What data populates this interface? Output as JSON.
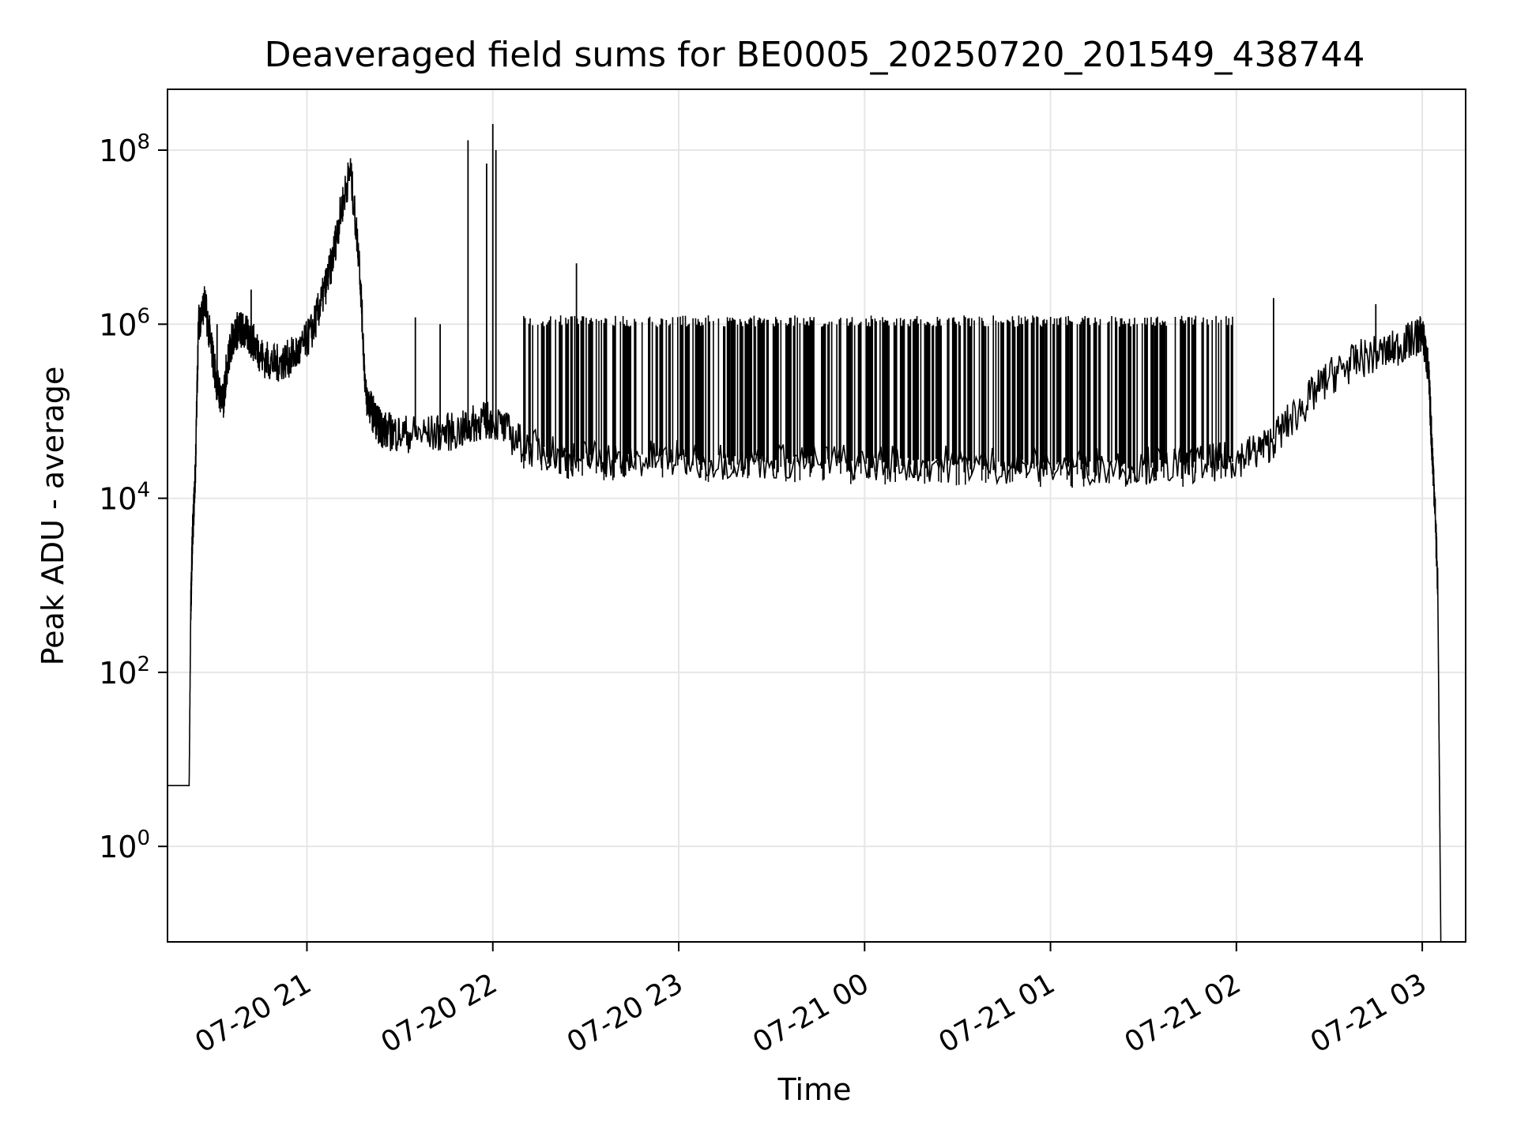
{
  "chart_data": {
    "type": "line",
    "title": "Deaveraged field sums for BE0005_20250720_201549_438744",
    "xlabel": "Time",
    "ylabel": "Peak ADU - average",
    "y_scale": "log",
    "ylim": [
      0.08,
      500000000.0
    ],
    "y_ticks": [
      1,
      100,
      10000,
      1000000,
      100000000
    ],
    "y_tick_labels": [
      {
        "base": "10",
        "exp": "0"
      },
      {
        "base": "10",
        "exp": "2"
      },
      {
        "base": "10",
        "exp": "4"
      },
      {
        "base": "10",
        "exp": "6"
      },
      {
        "base": "10",
        "exp": "8"
      }
    ],
    "xlim": [
      "2025-07-20 20:15",
      "2025-07-21 03:14"
    ],
    "x_ticks": [
      "2025-07-20 21:00",
      "2025-07-20 22:00",
      "2025-07-20 23:00",
      "2025-07-21 00:00",
      "2025-07-21 01:00",
      "2025-07-21 02:00",
      "2025-07-21 03:00"
    ],
    "x_tick_labels": [
      "07-20 21",
      "07-20 22",
      "07-20 23",
      "07-21 00",
      "07-21 01",
      "07-21 02",
      "07-21 03"
    ],
    "grid": true,
    "line_color": "#000000",
    "grid_color": "#e6e6e6",
    "series": [
      {
        "x": [
          "2025-07-20 20:15",
          "2025-07-20 20:18",
          "2025-07-20 20:22",
          "2025-07-20 20:22:30",
          "2025-07-20 20:23",
          "2025-07-20 20:24",
          "2025-07-20 20:25",
          "2025-07-20 20:27",
          "2025-07-20 20:29",
          "2025-07-20 20:31",
          "2025-07-20 20:33",
          "2025-07-20 20:34",
          "2025-07-20 20:36",
          "2025-07-20 20:38",
          "2025-07-20 20:40",
          "2025-07-20 20:43",
          "2025-07-20 20:46",
          "2025-07-20 20:50",
          "2025-07-20 20:54",
          "2025-07-20 20:58",
          "2025-07-20 21:02",
          "2025-07-20 21:05",
          "2025-07-20 21:08",
          "2025-07-20 21:11",
          "2025-07-20 21:14",
          "2025-07-20 21:17",
          "2025-07-20 21:19",
          "2025-07-20 21:21",
          "2025-07-20 21:23",
          "2025-07-20 21:25",
          "2025-07-20 21:30",
          "2025-07-20 21:40",
          "2025-07-20 21:50",
          "2025-07-20 21:55",
          "2025-07-20 22:00",
          "2025-07-20 22:10",
          "2025-07-20 22:25",
          "2025-07-20 22:40",
          "2025-07-20 23:00",
          "2025-07-20 23:30",
          "2025-07-21 00:00",
          "2025-07-21 00:30",
          "2025-07-21 01:00",
          "2025-07-21 01:30",
          "2025-07-21 01:50",
          "2025-07-21 02:00",
          "2025-07-21 02:10",
          "2025-07-21 02:20",
          "2025-07-21 02:30",
          "2025-07-21 02:40",
          "2025-07-21 02:50",
          "2025-07-21 02:58",
          "2025-07-21 03:00",
          "2025-07-21 03:02",
          "2025-07-21 03:03",
          "2025-07-21 03:04",
          "2025-07-21 03:05",
          "2025-07-21 03:06"
        ],
        "y": [
          5,
          5,
          5,
          500,
          3000,
          20000,
          1000000,
          1800000,
          600000,
          200000,
          120000,
          300000,
          700000,
          900000,
          800000,
          600000,
          400000,
          350000,
          400000,
          500000,
          900000,
          2000000,
          5000000,
          20000000,
          60000000,
          5000000,
          150000,
          100000,
          70000,
          60000,
          55000,
          55000,
          60000,
          75000,
          80000,
          40000,
          30000,
          28000,
          28000,
          27000,
          26000,
          25000,
          24000,
          24000,
          25000,
          28000,
          40000,
          100000,
          250000,
          400000,
          500000,
          700000,
          800000,
          300000,
          50000,
          10000,
          1000,
          0.08
        ]
      }
    ],
    "spikes": [
      {
        "x": "2025-07-20 20:31",
        "y": 1000000
      },
      {
        "x": "2025-07-20 20:42",
        "y": 2500000
      },
      {
        "x": "2025-07-20 21:35",
        "y": 1200000
      },
      {
        "x": "2025-07-20 21:43",
        "y": 1000000
      },
      {
        "x": "2025-07-20 21:52",
        "y": 130000000
      },
      {
        "x": "2025-07-20 21:58",
        "y": 70000000
      },
      {
        "x": "2025-07-20 22:00",
        "y": 200000000
      },
      {
        "x": "2025-07-20 22:01",
        "y": 100000000
      },
      {
        "x": "2025-07-20 22:27",
        "y": 5000000
      },
      {
        "x": "2025-07-21 02:12",
        "y": 2000000
      },
      {
        "x": "2025-07-21 02:45",
        "y": 1700000
      }
    ],
    "band": {
      "x_start": "2025-07-20 22:10",
      "x_end": "2025-07-21 02:00",
      "y_high": 1100000
    }
  }
}
